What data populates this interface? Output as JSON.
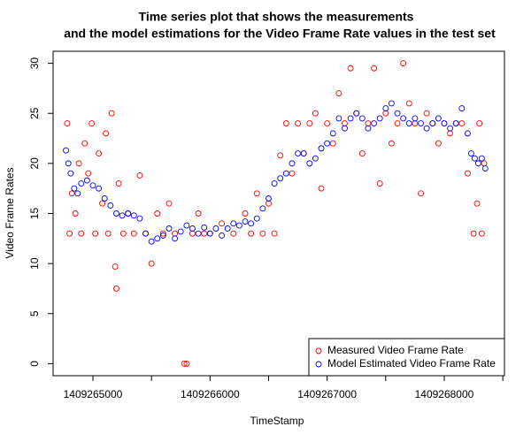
{
  "chart_data": {
    "type": "scatter",
    "title": [
      "Time series plot that shows the measurements",
      "and the model estimations for the Video Frame Rate values in the test set"
    ],
    "xlabel": "TimeStamp",
    "ylabel": "Video Frame Rates",
    "xlim": [
      1409264660,
      1409268514
    ],
    "ylim": [
      -1.2,
      31.2
    ],
    "xticks": [
      {
        "value": 1409265000,
        "label": "1409265000"
      },
      {
        "value": 1409265500,
        "label": null
      },
      {
        "value": 1409266000,
        "label": "1409266000"
      },
      {
        "value": 1409266500,
        "label": null
      },
      {
        "value": 1409267000,
        "label": "1409267000"
      },
      {
        "value": 1409267500,
        "label": null
      },
      {
        "value": 1409268000,
        "label": "1409268000"
      },
      {
        "value": 1409268500,
        "label": null
      }
    ],
    "yticks": [
      0,
      5,
      10,
      15,
      20,
      25,
      30
    ],
    "legend": "bottomright",
    "grid": false,
    "series": [
      {
        "name": "Measured Video Frame Rate",
        "color": "#ff0000",
        "x": [
          1409264780,
          1409264800,
          1409264820,
          1409264850,
          1409264880,
          1409264900,
          1409264930,
          1409264960,
          1409264990,
          1409265020,
          1409265050,
          1409265080,
          1409265110,
          1409265130,
          1409265160,
          1409265190,
          1409265200,
          1409265220,
          1409265260,
          1409265300,
          1409265350,
          1409265400,
          1409265450,
          1409265500,
          1409265550,
          1409265600,
          1409265650,
          1409265700,
          1409265780,
          1409265800,
          1409265850,
          1409265900,
          1409265950,
          1409266000,
          1409266100,
          1409266200,
          1409266300,
          1409266350,
          1409266400,
          1409266450,
          1409266500,
          1409266550,
          1409266600,
          1409266650,
          1409266700,
          1409266750,
          1409266800,
          1409266850,
          1409266900,
          1409266950,
          1409267000,
          1409267050,
          1409267100,
          1409267150,
          1409267200,
          1409267250,
          1409267300,
          1409267350,
          1409267400,
          1409267450,
          1409267500,
          1409267550,
          1409267600,
          1409267650,
          1409267700,
          1409267750,
          1409267800,
          1409267850,
          1409267900,
          1409267950,
          1409268000,
          1409268050,
          1409268100,
          1409268150,
          1409268200,
          1409268250,
          1409268280,
          1409268300,
          1409268320,
          1409268340
        ],
        "values": [
          24,
          13,
          17,
          15,
          20,
          13,
          22,
          19,
          24,
          13,
          21,
          16,
          23,
          13,
          25,
          9.7,
          7.5,
          18,
          13,
          15,
          13,
          18.8,
          13,
          10,
          15,
          13,
          16,
          13,
          0,
          0,
          13,
          15,
          13,
          13,
          14,
          13,
          15,
          13,
          17,
          13,
          16,
          13,
          20.8,
          24,
          19,
          24,
          21,
          24,
          25,
          17.5,
          24,
          22,
          27,
          24,
          29.5,
          25,
          21,
          24,
          29.5,
          18,
          25,
          22,
          24,
          30,
          26,
          24,
          17,
          25,
          24,
          22,
          24,
          23,
          24,
          24,
          19,
          13,
          16,
          24,
          13,
          20
        ]
      },
      {
        "name": "Model Estimated Video Frame Rate",
        "color": "#0000ff",
        "x": [
          1409264770,
          1409264790,
          1409264810,
          1409264840,
          1409264870,
          1409264900,
          1409264950,
          1409265000,
          1409265050,
          1409265100,
          1409265150,
          1409265200,
          1409265250,
          1409265300,
          1409265350,
          1409265400,
          1409265450,
          1409265500,
          1409265550,
          1409265600,
          1409265650,
          1409265700,
          1409265750,
          1409265800,
          1409265850,
          1409265900,
          1409265950,
          1409266000,
          1409266050,
          1409266100,
          1409266150,
          1409266200,
          1409266250,
          1409266300,
          1409266350,
          1409266400,
          1409266450,
          1409266500,
          1409266550,
          1409266600,
          1409266650,
          1409266700,
          1409266750,
          1409266800,
          1409266850,
          1409266900,
          1409266950,
          1409267000,
          1409267050,
          1409267100,
          1409267150,
          1409267200,
          1409267250,
          1409267300,
          1409267350,
          1409267400,
          1409267450,
          1409267500,
          1409267550,
          1409267600,
          1409267650,
          1409267700,
          1409267750,
          1409267800,
          1409267850,
          1409267900,
          1409267950,
          1409268000,
          1409268050,
          1409268100,
          1409268150,
          1409268200,
          1409268230,
          1409268260,
          1409268290,
          1409268320,
          1409268350
        ],
        "values": [
          21.3,
          20,
          19,
          17.5,
          17,
          18,
          18.3,
          17.8,
          17.5,
          16.5,
          15.8,
          15,
          14.8,
          15,
          14.8,
          14.5,
          13,
          12.2,
          12.5,
          12.8,
          13.5,
          12.5,
          13.2,
          13.8,
          13.5,
          13,
          13.6,
          13,
          13.5,
          12.8,
          13.5,
          14,
          13.8,
          14.2,
          14,
          14.5,
          15.5,
          16.5,
          18,
          18.5,
          19,
          20,
          21,
          21,
          20,
          20.5,
          21.5,
          22,
          23,
          24.5,
          23.5,
          24.5,
          25,
          24.5,
          23.5,
          24,
          24.5,
          25.5,
          26,
          25,
          24.5,
          24,
          24.5,
          24,
          23.5,
          24,
          24.5,
          24,
          23.5,
          24,
          25.5,
          23,
          21,
          20.5,
          20,
          20.5,
          19.5
        ]
      }
    ]
  }
}
